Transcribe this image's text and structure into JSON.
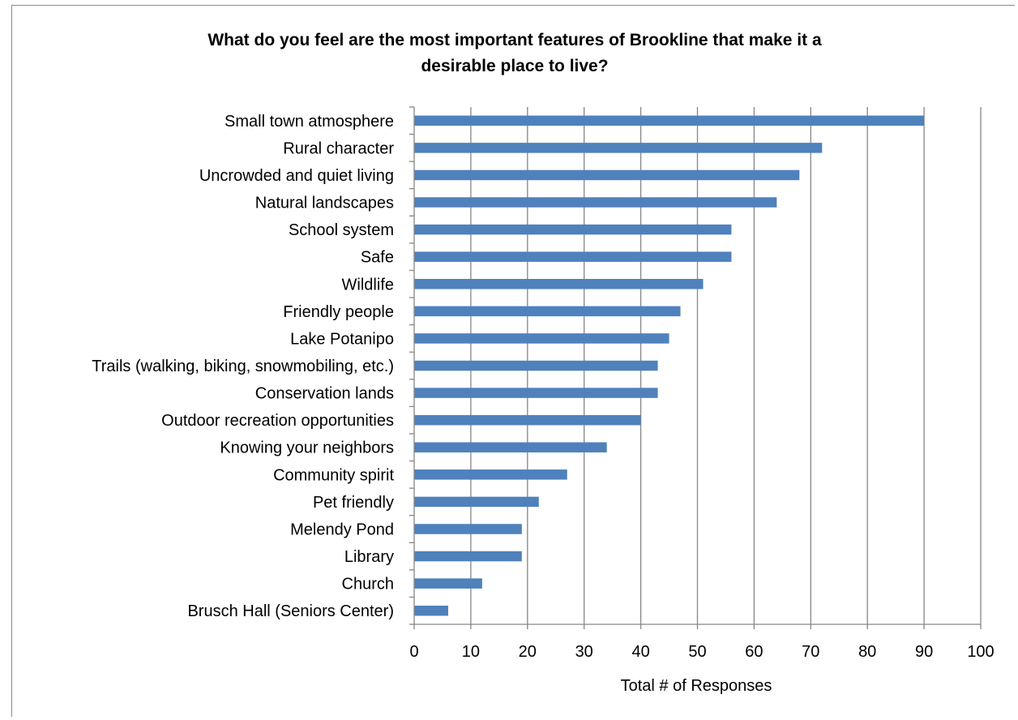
{
  "chart_data": {
    "type": "bar",
    "orientation": "horizontal",
    "title": "What do you feel are the most important features of Brookline that make it a\ndesirable place to live?",
    "xlabel": "Total # of Responses",
    "ylabel": "",
    "xlim": [
      0,
      100
    ],
    "xticks": [
      0,
      10,
      20,
      30,
      40,
      50,
      60,
      70,
      80,
      90,
      100
    ],
    "grid": "vertical",
    "legend": "none",
    "bar_color": "#4F81BD",
    "categories": [
      "Small town atmosphere",
      "Rural character",
      "Uncrowded and quiet living",
      "Natural landscapes",
      "School system",
      "Safe",
      "Wildlife",
      "Friendly people",
      "Lake Potanipo",
      "Trails (walking, biking, snowmobiling, etc.)",
      "Conservation lands",
      "Outdoor recreation opportunities",
      "Knowing your neighbors",
      "Community spirit",
      "Pet friendly",
      "Melendy Pond",
      "Library",
      "Church",
      "Brusch Hall (Seniors Center)"
    ],
    "values": [
      90,
      72,
      68,
      64,
      56,
      56,
      51,
      47,
      45,
      43,
      43,
      40,
      34,
      27,
      22,
      19,
      19,
      12,
      6
    ]
  }
}
